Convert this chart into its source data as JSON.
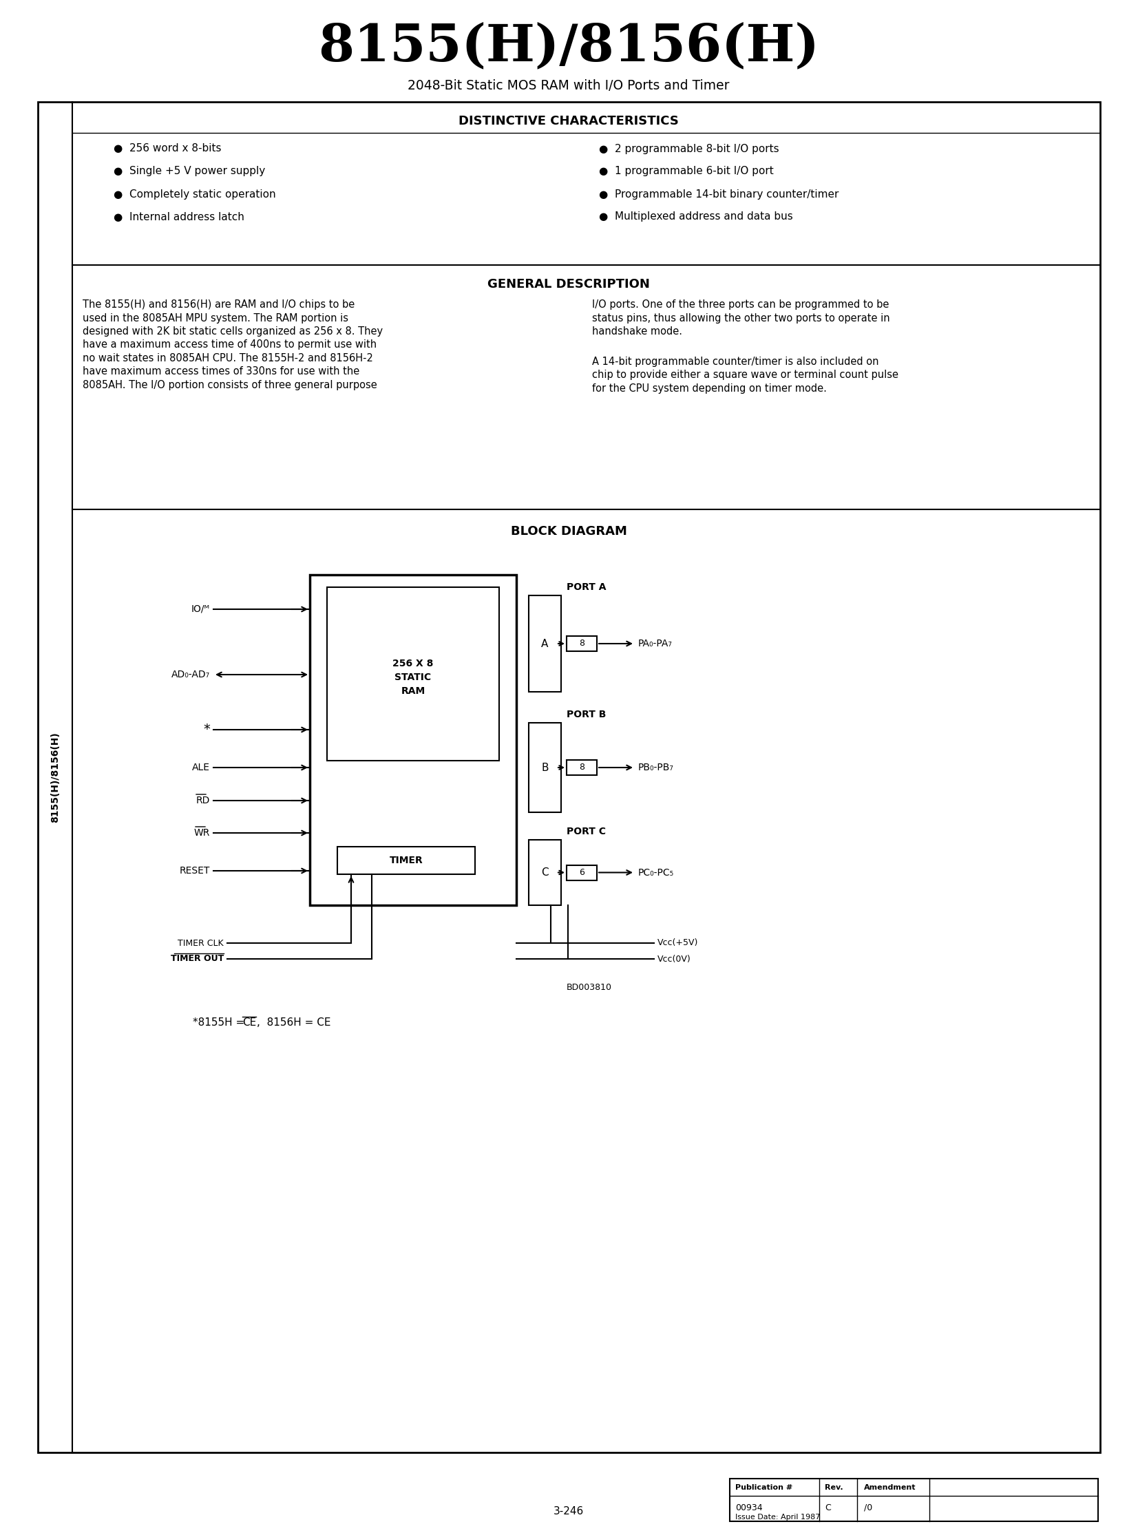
{
  "title": "8155(H)/8156(H)",
  "subtitle": "2048-Bit Static MOS RAM with I/O Ports and Timer",
  "distinctive_title": "DISTINCTIVE CHARACTERISTICS",
  "left_bullets": [
    "256 word x 8-bits",
    "Single +5 V power supply",
    "Completely static operation",
    "Internal address latch"
  ],
  "right_bullets": [
    "2 programmable 8-bit I/O ports",
    "1 programmable 6-bit I/O port",
    "Programmable 14-bit binary counter/timer",
    "Multiplexed address and data bus"
  ],
  "general_desc_title": "GENERAL DESCRIPTION",
  "left_lines": [
    "The 8155(H) and 8156(H) are RAM and I/O chips to be",
    "used in the 8085AH MPU system. The RAM portion is",
    "designed with 2K bit static cells organized as 256 x 8. They",
    "have a maximum access time of 400ns to permit use with",
    "no wait states in 8085AH CPU. The 8155H-2 and 8156H-2",
    "have maximum access times of 330ns for use with the",
    "8085AH. The I/O portion consists of three general purpose"
  ],
  "right_lines1": [
    "I/O ports. One of the three ports can be programmed to be",
    "status pins, thus allowing the other two ports to operate in",
    "handshake mode."
  ],
  "right_lines2": [
    "A 14-bit programmable counter/timer is also included on",
    "chip to provide either a square wave or terminal count pulse",
    "for the CPU system depending on timer mode."
  ],
  "block_diagram_title": "BLOCK DIAGRAM",
  "sidebar_text": "8155(H)/8156(H)",
  "footnote_prefix": "*8155H = ",
  "footnote_ce_bar": "CE",
  "footnote_suffix": ",  8156H = CE",
  "bd_label": "BD003810",
  "footer_pub": "Publication #",
  "footer_pub_num": "00934",
  "footer_rev": "Rev.",
  "footer_rev_val": "C",
  "footer_amend": "Amendment",
  "footer_amend_val": "/0",
  "footer_issue": "Issue Date: April 1987",
  "page_num": "3-246"
}
